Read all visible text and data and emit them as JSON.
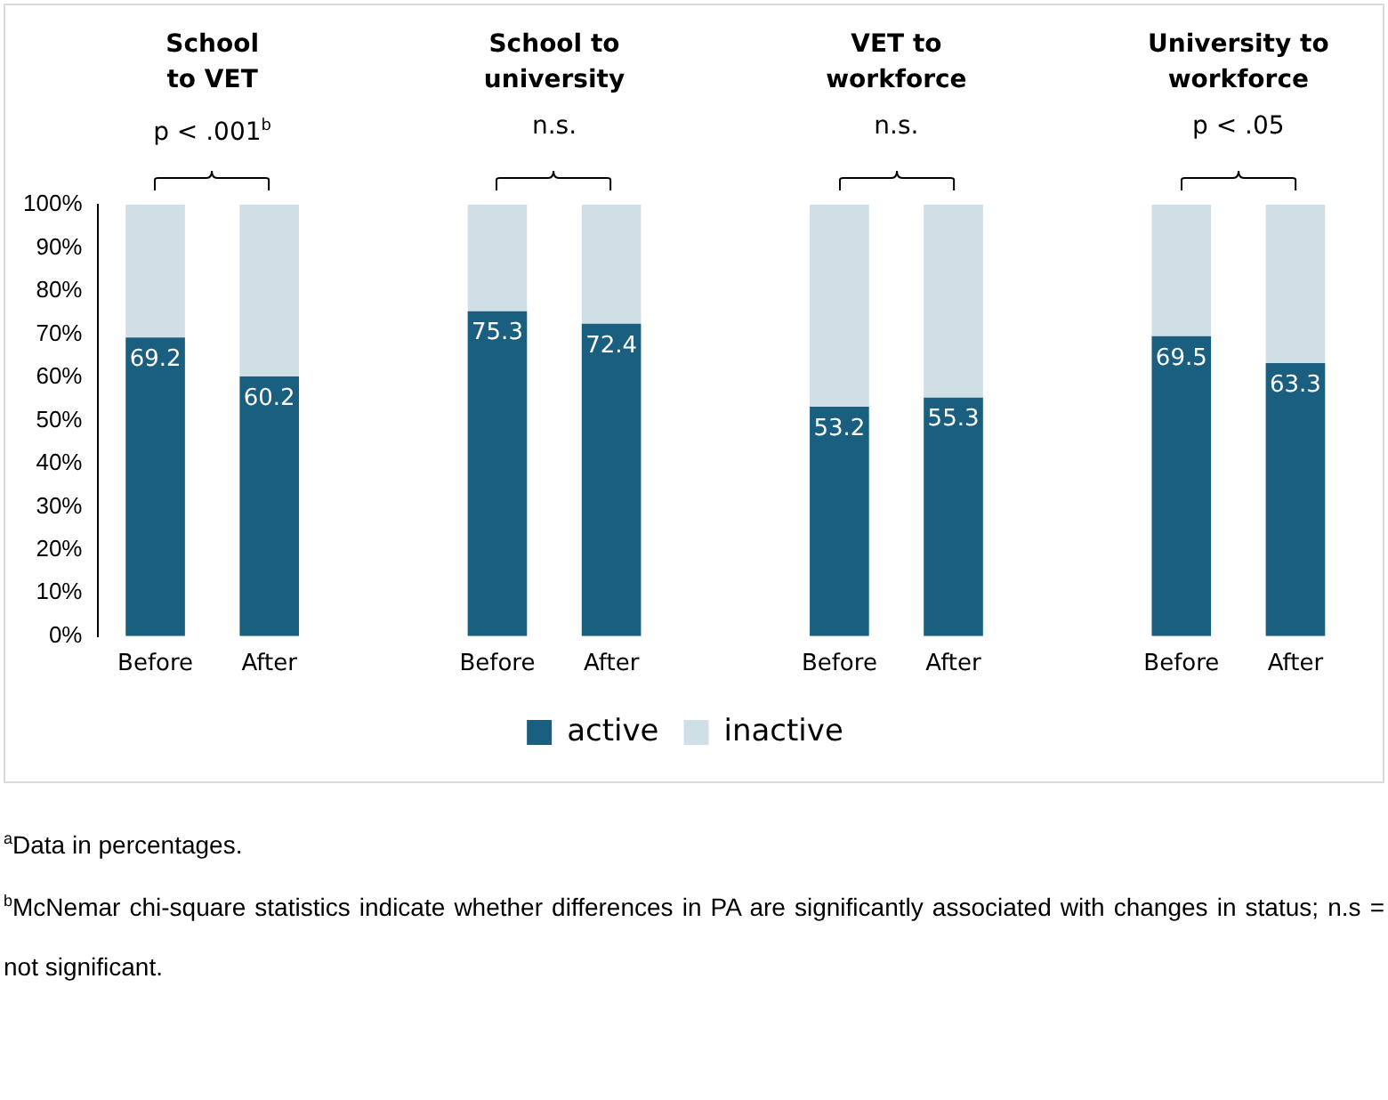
{
  "chart_data": {
    "type": "bar",
    "stacked": true,
    "categories": [
      "Before",
      "After",
      null,
      "Before",
      "After",
      null,
      "Before",
      "After",
      null,
      "Before",
      "After"
    ],
    "series": [
      {
        "name": "active",
        "color": "#1b5f80",
        "values": [
          69.2,
          60.2,
          null,
          75.3,
          72.4,
          null,
          53.2,
          55.3,
          null,
          69.5,
          63.3
        ],
        "value_labels": [
          "69.2",
          "60.2",
          null,
          "75.3",
          "72.4",
          null,
          "53.2",
          "55.3",
          null,
          "69.5",
          "63.3"
        ]
      },
      {
        "name": "inactive",
        "color": "#d0dfe6",
        "values": [
          30.8,
          39.8,
          null,
          24.7,
          27.6,
          null,
          46.8,
          44.7,
          null,
          30.5,
          36.7
        ]
      }
    ],
    "ylim": [
      0,
      100
    ],
    "yticks": [
      {
        "value": 0,
        "label": "0%"
      },
      {
        "value": 10,
        "label": "10%"
      },
      {
        "value": 20,
        "label": "20%"
      },
      {
        "value": 30,
        "label": "30%"
      },
      {
        "value": 40,
        "label": "40%"
      },
      {
        "value": 50,
        "label": "50%"
      },
      {
        "value": 60,
        "label": "60%"
      },
      {
        "value": 70,
        "label": "70%"
      },
      {
        "value": 80,
        "label": "80%"
      },
      {
        "value": 90,
        "label": "90%"
      },
      {
        "value": 100,
        "label": "100%"
      }
    ],
    "grid": false,
    "legend": "bottom",
    "annotations": [
      "School\nto VET",
      "School to\nuniversity",
      "VET to\nworkforce",
      "University to\nworkforce",
      "p < .001$^{b}$",
      "n.s.",
      "n.s.",
      "p < .05",
      "$^{a}$Data in percentages.",
      "$^{b}$McNemar chi-square statistics indicate whether differences in PA are significantly associated with changes in status; n.s = not significant."
    ]
  }
}
